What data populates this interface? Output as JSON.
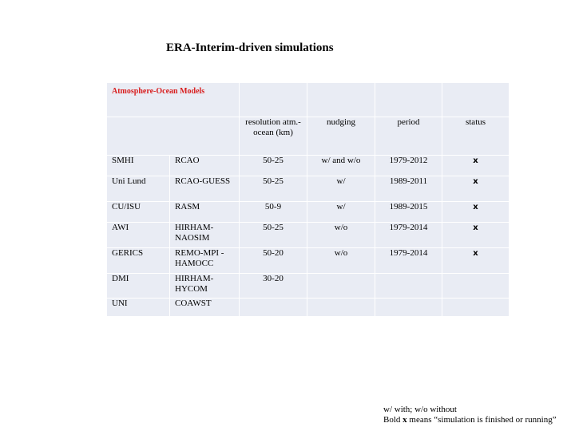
{
  "title": "ERA-Interim-driven simulations",
  "table": {
    "group_header": "Atmosphere-Ocean Models",
    "columns": {
      "resolution": "resolution atm.-ocean (km)",
      "nudging": "nudging",
      "period": "period",
      "status": "status"
    },
    "rows": [
      {
        "institute": "SMHI",
        "model": "RCAO",
        "resolution": "50-25",
        "nudging": "w/ and w/o",
        "period": "1979-2012",
        "status": "x"
      },
      {
        "institute": "Uni Lund",
        "model": "RCAO-GUESS",
        "resolution": "50-25",
        "nudging": "w/",
        "period": "1989-2011",
        "status": "x"
      },
      {
        "institute": "CU/ISU",
        "model": "RASM",
        "resolution": "50-9",
        "nudging": "w/",
        "period": "1989-2015",
        "status": "x"
      },
      {
        "institute": "AWI",
        "model": "HIRHAM-NAOSIM",
        "resolution": "50-25",
        "nudging": "w/o",
        "period": "1979-2014",
        "status": "x"
      },
      {
        "institute": "GERICS",
        "model": "REMO-MPI -HAMOCC",
        "resolution": "50-20",
        "nudging": "w/o",
        "period": "1979-2014",
        "status": "x"
      },
      {
        "institute": "DMI",
        "model": "HIRHAM-HYCOM",
        "resolution": "30-20",
        "nudging": "",
        "period": "",
        "status": ""
      },
      {
        "institute": "UNI",
        "model": "COAWST",
        "resolution": "",
        "nudging": "",
        "period": "",
        "status": ""
      }
    ]
  },
  "footnote": {
    "line1": "w/ with; w/o without",
    "line2_pre": "Bold ",
    "line2_bold": "x",
    "line2_post": " means “simulation is finished or running”"
  }
}
